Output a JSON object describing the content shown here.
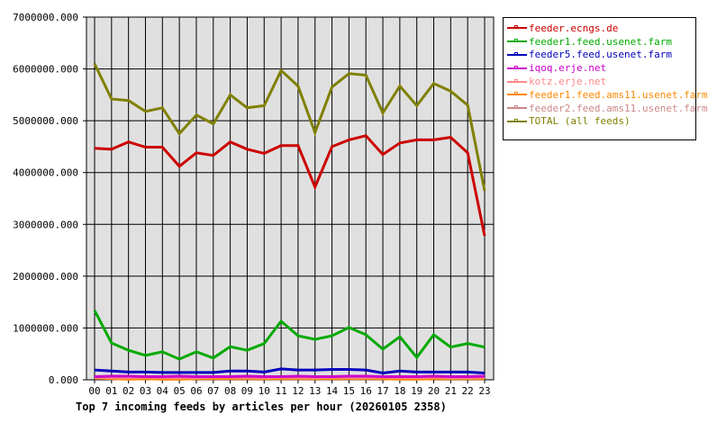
{
  "chart_data": {
    "type": "line",
    "title": "Top 7 incoming feeds by articles per hour (20260105 2358)",
    "xlabel": "",
    "ylabel": "",
    "ylim": [
      0,
      7000000
    ],
    "grid": true,
    "legend_position": "right",
    "y_ticks": [
      "0.000",
      "1000000.000",
      "2000000.000",
      "3000000.000",
      "4000000.000",
      "5000000.000",
      "6000000.000",
      "7000000.000"
    ],
    "categories": [
      "00",
      "01",
      "02",
      "03",
      "04",
      "05",
      "06",
      "07",
      "08",
      "09",
      "10",
      "11",
      "12",
      "13",
      "14",
      "15",
      "16",
      "17",
      "18",
      "19",
      "20",
      "21",
      "22",
      "23"
    ],
    "series": [
      {
        "name": "feeder.ecngs.de",
        "color": "#cc0000",
        "values": [
          4470000,
          4450000,
          4590000,
          4490000,
          4490000,
          4120000,
          4380000,
          4330000,
          4590000,
          4450000,
          4370000,
          4520000,
          4520000,
          3720000,
          4500000,
          4630000,
          4710000,
          4350000,
          4570000,
          4630000,
          4630000,
          4680000,
          4380000,
          2780000
        ]
      },
      {
        "name": "feeder1.feed.usenet.farm",
        "color": "#00aa00",
        "values": [
          1340000,
          710000,
          570000,
          470000,
          540000,
          400000,
          540000,
          420000,
          640000,
          570000,
          700000,
          1130000,
          850000,
          780000,
          850000,
          1010000,
          870000,
          590000,
          830000,
          430000,
          870000,
          630000,
          700000,
          630000
        ]
      },
      {
        "name": "feeder5.feed.usenet.farm",
        "color": "#0000bb",
        "values": [
          190000,
          170000,
          150000,
          150000,
          140000,
          140000,
          140000,
          140000,
          170000,
          170000,
          150000,
          210000,
          190000,
          190000,
          200000,
          200000,
          190000,
          130000,
          170000,
          150000,
          150000,
          150000,
          150000,
          130000
        ]
      },
      {
        "name": "iqoq.erje.net",
        "color": "#cc00cc",
        "values": [
          60000,
          70000,
          70000,
          60000,
          60000,
          70000,
          60000,
          60000,
          60000,
          70000,
          60000,
          60000,
          70000,
          60000,
          60000,
          70000,
          70000,
          60000,
          60000,
          60000,
          70000,
          60000,
          60000,
          70000
        ]
      },
      {
        "name": "kotz.erje.net",
        "color": "#ff8888",
        "values": [
          50000,
          40000,
          40000,
          50000,
          40000,
          40000,
          40000,
          50000,
          50000,
          40000,
          40000,
          50000,
          40000,
          40000,
          50000,
          40000,
          40000,
          50000,
          40000,
          40000,
          50000,
          40000,
          40000,
          50000
        ]
      },
      {
        "name": "feeder1.feed.ams11.usenet.farm",
        "color": "#ff8800",
        "values": [
          40000,
          20000,
          10000,
          20000,
          10000,
          10000,
          20000,
          20000,
          20000,
          20000,
          20000,
          20000,
          20000,
          20000,
          20000,
          20000,
          20000,
          20000,
          10000,
          10000,
          20000,
          20000,
          20000,
          20000
        ]
      },
      {
        "name": "feeder2.feed.ams11.usenet.farm",
        "color": "#cc8888",
        "values": [
          30000,
          30000,
          30000,
          30000,
          30000,
          30000,
          30000,
          30000,
          30000,
          30000,
          30000,
          30000,
          30000,
          30000,
          30000,
          30000,
          30000,
          30000,
          30000,
          30000,
          30000,
          30000,
          30000,
          30000
        ]
      },
      {
        "name": "TOTAL (all feeds)",
        "color": "#808000",
        "values": [
          6100000,
          5420000,
          5390000,
          5180000,
          5250000,
          4750000,
          5110000,
          4940000,
          5500000,
          5250000,
          5290000,
          5970000,
          5670000,
          4770000,
          5650000,
          5910000,
          5880000,
          5150000,
          5670000,
          5290000,
          5720000,
          5570000,
          5300000,
          3650000
        ]
      }
    ]
  },
  "legend": {
    "items": [
      {
        "label": "feeder.ecngs.de",
        "color": "#cc0000"
      },
      {
        "label": "feeder1.feed.usenet.farm",
        "color": "#00aa00"
      },
      {
        "label": "feeder5.feed.usenet.farm",
        "color": "#0000bb"
      },
      {
        "label": "iqoq.erje.net",
        "color": "#cc00cc"
      },
      {
        "label": "kotz.erje.net",
        "color": "#ff8888"
      },
      {
        "label": "feeder1.feed.ams11.usenet.farm",
        "color": "#ff8800"
      },
      {
        "label": "feeder2.feed.ams11.usenet.farm",
        "color": "#cc8888"
      },
      {
        "label": "TOTAL (all feeds)",
        "color": "#808000"
      }
    ]
  },
  "colors": {
    "plot_background": "#e0e0e0",
    "grid": "#000000"
  }
}
